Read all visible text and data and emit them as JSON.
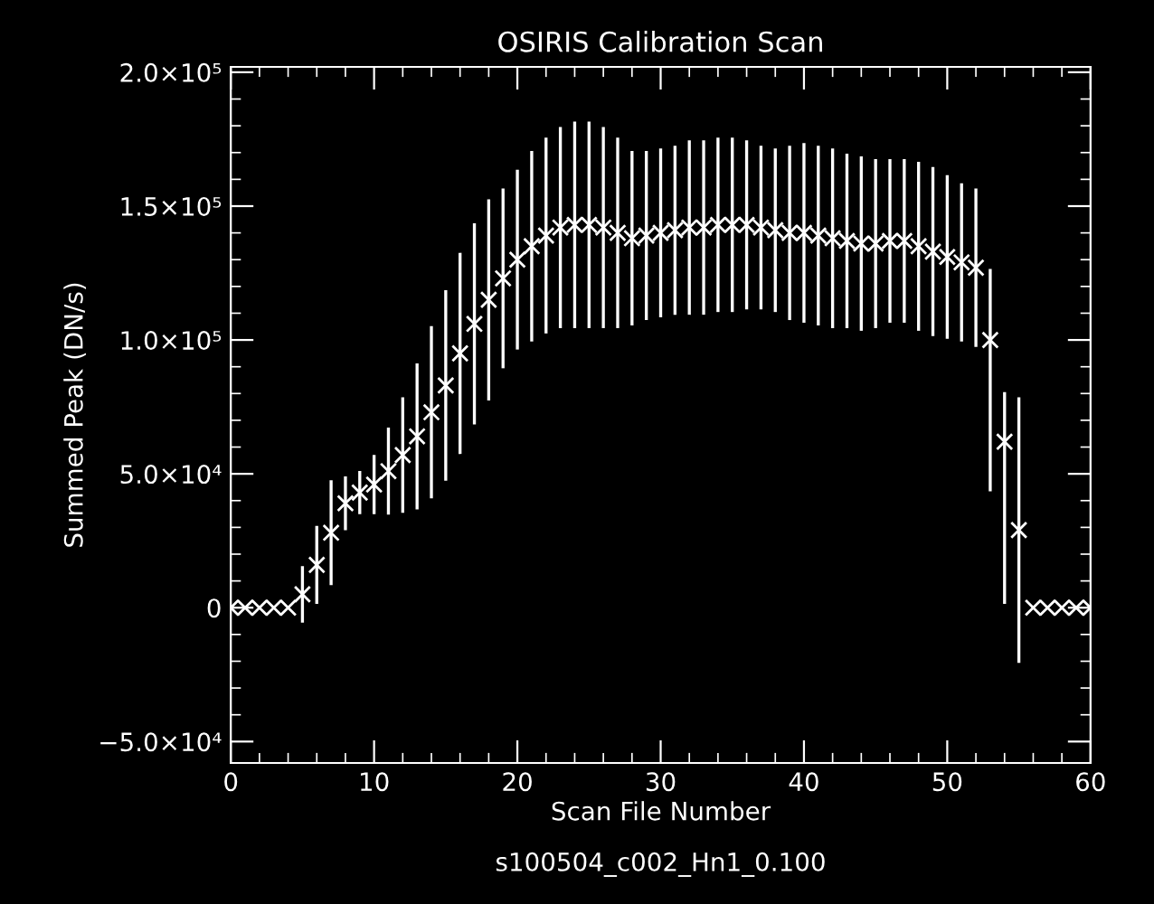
{
  "chart_data": {
    "type": "scatter",
    "title": "OSIRIS Calibration Scan",
    "xlabel": "Scan File Number",
    "ylabel": "Summed Peak (DN/s)",
    "annotations": [
      "s100504_c002_Hn1_0.100"
    ],
    "x": [
      0,
      1,
      2,
      3,
      4,
      5,
      6,
      7,
      8,
      9,
      10,
      11,
      12,
      13,
      14,
      15,
      16,
      17,
      18,
      19,
      20,
      21,
      22,
      23,
      24,
      25,
      26,
      27,
      28,
      29,
      30,
      31,
      32,
      33,
      34,
      35,
      36,
      37,
      38,
      39,
      40,
      41,
      42,
      43,
      44,
      45,
      46,
      47,
      48,
      49,
      50,
      51,
      52,
      53,
      54,
      55,
      56,
      57,
      58,
      59,
      60
    ],
    "series": [
      {
        "color": "#ffffff",
        "values": [
          0,
          0,
          0,
          0,
          0,
          5000,
          16000,
          28000,
          39000,
          43000,
          46000,
          51000,
          57000,
          64000,
          73000,
          83000,
          95000,
          106000,
          115000,
          123000,
          130000,
          135000,
          139000,
          142000,
          143000,
          143000,
          142000,
          140000,
          138000,
          139000,
          140000,
          141000,
          142000,
          142000,
          143000,
          143000,
          143000,
          142000,
          141000,
          140000,
          140000,
          139000,
          138000,
          137000,
          136000,
          136000,
          137000,
          137000,
          135000,
          133000,
          131000,
          129000,
          127000,
          100000,
          62000,
          29000,
          0,
          0,
          0,
          0,
          0
        ],
        "errors": [
          null,
          null,
          null,
          null,
          null,
          10000,
          14000,
          19000,
          9500,
          7500,
          10500,
          15700,
          21000,
          26700,
          31600,
          35000,
          37000,
          37000,
          37000,
          33000,
          33000,
          35000,
          36000,
          37000,
          38000,
          38000,
          37000,
          35000,
          32000,
          31000,
          31000,
          31000,
          32000,
          32000,
          32000,
          32000,
          31000,
          30000,
          30000,
          32000,
          33000,
          33000,
          33000,
          32000,
          32000,
          31000,
          30000,
          30000,
          31000,
          31000,
          30000,
          29000,
          29000,
          [
            44000,
            126000
          ],
          [
            2000,
            80000
          ],
          49000,
          null,
          null,
          null,
          null,
          null
        ]
      }
    ],
    "marker": "cross",
    "xlim": [
      0,
      60
    ],
    "xticks": [
      0,
      10,
      20,
      30,
      40,
      50,
      60
    ],
    "ylim": [
      -58000,
      202000
    ],
    "yticks": [
      {
        "value": -50000,
        "label": "−5.0×10⁴"
      },
      {
        "value": 0,
        "label": "0"
      },
      {
        "value": 50000,
        "label": "5.0×10⁴"
      },
      {
        "value": 100000,
        "label": "1.0×10⁵"
      },
      {
        "value": 150000,
        "label": "1.5×10⁵"
      },
      {
        "value": 200000,
        "label": "2.0×10⁵"
      }
    ],
    "grid": false,
    "legend": false
  }
}
